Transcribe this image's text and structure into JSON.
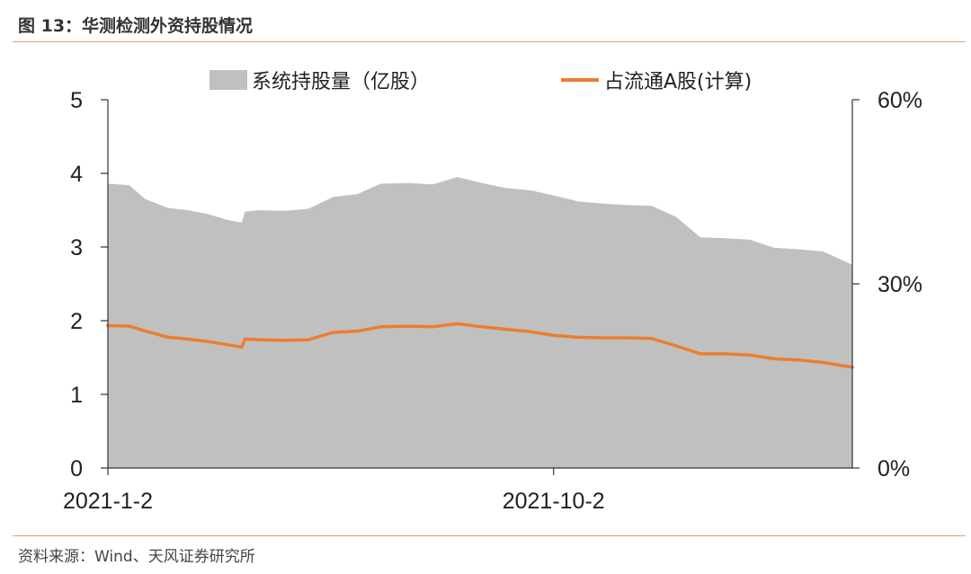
{
  "figure": {
    "title": "图 13：华测检测外资持股情况",
    "source": "资料来源：Wind、天风证券研究所"
  },
  "colors": {
    "area": "#c0c0c0",
    "line": "#ed7d31",
    "rule": "#f0a060"
  },
  "chart_data": {
    "type": "area",
    "title": "",
    "legend_position": "top",
    "grid": false,
    "x_ticks": [
      "2021-1-2",
      "2021-10-2"
    ],
    "x_range": [
      "2021-01-02",
      "2022-04-03"
    ],
    "y_left": {
      "label": "",
      "ticks": [
        "0",
        "1",
        "2",
        "3",
        "4",
        "5"
      ],
      "range": [
        0,
        5
      ]
    },
    "y_right": {
      "label": "",
      "ticks": [
        "0%",
        "30%",
        "60%"
      ],
      "range": [
        0,
        60
      ],
      "unit": "%"
    },
    "series": [
      {
        "name": "系统持股量（亿股）",
        "type": "area",
        "axis": "left",
        "x": [
          "2021-01-02",
          "2021-01-15",
          "2021-01-25",
          "2021-02-08",
          "2021-02-20",
          "2021-03-04",
          "2021-03-16",
          "2021-03-25",
          "2021-03-27",
          "2021-04-05",
          "2021-04-20",
          "2021-05-05",
          "2021-05-20",
          "2021-06-04",
          "2021-06-18",
          "2021-07-05",
          "2021-07-20",
          "2021-08-04",
          "2021-08-19",
          "2021-09-03",
          "2021-09-18",
          "2021-10-02",
          "2021-10-17",
          "2021-11-01",
          "2021-11-16",
          "2021-12-01",
          "2021-12-16",
          "2021-12-31",
          "2022-01-15",
          "2022-01-30",
          "2022-02-14",
          "2022-03-01",
          "2022-03-16",
          "2022-04-03"
        ],
        "values": [
          3.86,
          3.84,
          3.65,
          3.53,
          3.5,
          3.45,
          3.37,
          3.33,
          3.48,
          3.5,
          3.49,
          3.52,
          3.68,
          3.72,
          3.86,
          3.87,
          3.85,
          3.95,
          3.87,
          3.8,
          3.77,
          3.7,
          3.62,
          3.59,
          3.57,
          3.56,
          3.41,
          3.13,
          3.12,
          3.1,
          2.99,
          2.97,
          2.94,
          2.76
        ]
      },
      {
        "name": "占流通A股(计算)",
        "type": "line",
        "axis": "right",
        "x": [
          "2021-01-02",
          "2021-01-15",
          "2021-01-25",
          "2021-02-08",
          "2021-02-20",
          "2021-03-04",
          "2021-03-16",
          "2021-03-25",
          "2021-03-27",
          "2021-04-05",
          "2021-04-20",
          "2021-05-05",
          "2021-05-20",
          "2021-06-04",
          "2021-06-18",
          "2021-07-05",
          "2021-07-20",
          "2021-08-04",
          "2021-08-19",
          "2021-09-03",
          "2021-09-18",
          "2021-10-02",
          "2021-10-17",
          "2021-11-01",
          "2021-11-16",
          "2021-12-01",
          "2021-12-16",
          "2021-12-31",
          "2022-01-15",
          "2022-01-30",
          "2022-02-14",
          "2022-03-01",
          "2022-03-16",
          "2022-04-03"
        ],
        "values": [
          23.2,
          23.1,
          22.3,
          21.3,
          21.0,
          20.6,
          20.1,
          19.7,
          21.0,
          20.9,
          20.8,
          20.9,
          22.1,
          22.3,
          23.0,
          23.1,
          23.0,
          23.5,
          23.0,
          22.6,
          22.2,
          21.6,
          21.3,
          21.2,
          21.2,
          21.1,
          19.9,
          18.6,
          18.6,
          18.4,
          17.8,
          17.6,
          17.2,
          16.4
        ]
      }
    ]
  }
}
